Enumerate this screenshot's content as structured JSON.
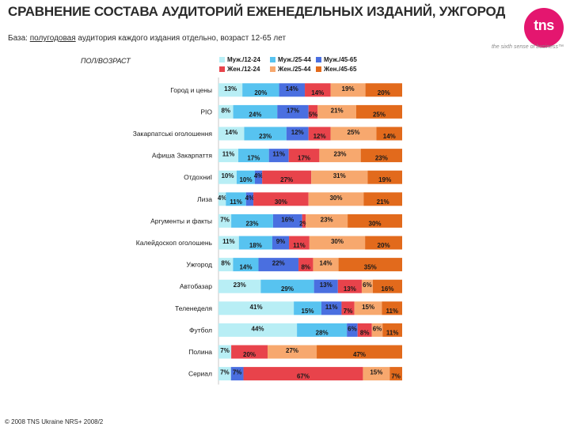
{
  "header": {
    "title": "СРАВНЕНИЕ СОСТАВА АУДИТОРИЙ ЕЖЕНЕДЕЛЬНЫХ ИЗДАНИЙ, УЖГОРОД",
    "subtitle_prefix": "База: ",
    "subtitle_underlined": "полугодовая",
    "subtitle_rest": " аудитория каждого издания отдельно, возраст 12-65 лет"
  },
  "logo": {
    "text": "tns",
    "tagline": "the sixth sense of business™",
    "color": "#e4166f"
  },
  "section_label": "ПОЛ/ВОЗРАСТ",
  "footer": {
    "text": "© 2008 TNS Ukraine NRS+ 2008/2"
  },
  "chart_data": {
    "type": "bar",
    "orientation": "horizontal",
    "stacked": true,
    "percent_stacked": true,
    "legend_position": "top",
    "grid": false,
    "categories": [
      "Город и цены",
      "РІО",
      "Закарпатські оголошення",
      "Афиша Закарпаття",
      "ОтдохниI",
      "Лиза",
      "Аргументы и факты",
      "Калейдоскоп оголошень",
      "Ужгород",
      "Автобазар",
      "Теленеделя",
      "Футбол",
      "Полина",
      "Сериал"
    ],
    "series": [
      {
        "name": "Муж./12-24",
        "color": "#b8eef5",
        "values": [
          13,
          8,
          14,
          11,
          10,
          4,
          7,
          11,
          8,
          23,
          41,
          44,
          7,
          7
        ]
      },
      {
        "name": "Муж./25-44",
        "color": "#57c3f0",
        "values": [
          20,
          24,
          23,
          17,
          10,
          11,
          23,
          18,
          14,
          29,
          15,
          28,
          0,
          0
        ]
      },
      {
        "name": "Муж./45-65",
        "color": "#4a6fe0",
        "values": [
          14,
          17,
          12,
          11,
          4,
          4,
          16,
          9,
          22,
          13,
          11,
          6,
          0,
          7
        ]
      },
      {
        "name": "Жен./12-24",
        "color": "#e8434b",
        "values": [
          14,
          5,
          12,
          17,
          27,
          30,
          2,
          11,
          8,
          13,
          7,
          8,
          20,
          67
        ]
      },
      {
        "name": "Жен./25-44",
        "color": "#f7a86e",
        "values": [
          19,
          21,
          25,
          23,
          31,
          30,
          23,
          30,
          14,
          6,
          15,
          6,
          27,
          15
        ]
      },
      {
        "name": "Жен./45-65",
        "color": "#e26a1c",
        "values": [
          20,
          25,
          14,
          23,
          19,
          21,
          30,
          20,
          35,
          16,
          11,
          11,
          47,
          7
        ]
      }
    ]
  }
}
